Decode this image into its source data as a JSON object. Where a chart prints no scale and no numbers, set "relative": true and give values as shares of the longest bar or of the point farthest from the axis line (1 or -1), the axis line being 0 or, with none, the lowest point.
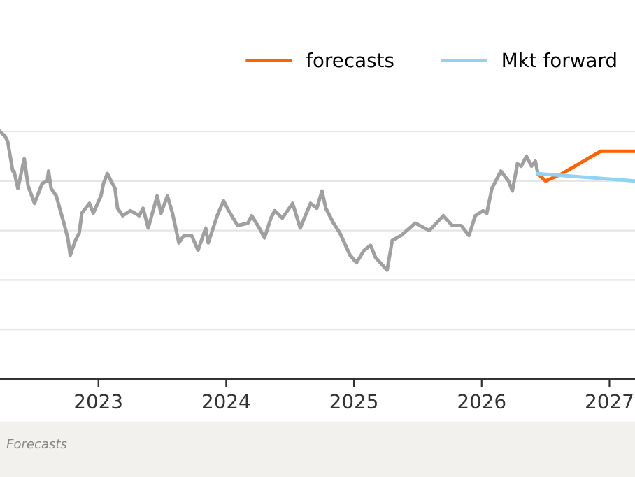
{
  "chart_data": {
    "type": "line",
    "relative": true,
    "grid": "y",
    "legend": "top right",
    "tick_labels": "x",
    "marker": "none",
    "line_style": "solid",
    "xlim": [
      2022.23,
      2027.2
    ],
    "xticks": [
      2023,
      2024,
      2025,
      2026,
      2027
    ],
    "annotations": [
      "Forecasts"
    ],
    "series": [
      {
        "color": "#a0a0a0",
        "x": [
          2022.23,
          2022.27,
          2022.29,
          2022.33,
          2022.34,
          2022.37,
          2022.42,
          2022.45,
          2022.5,
          2022.53,
          2022.56,
          2022.6,
          2022.61,
          2022.63,
          2022.67,
          2022.73,
          2022.76,
          2022.78,
          2022.82,
          2022.85,
          2022.87,
          2022.93,
          2022.96,
          2023.02,
          2023.04,
          2023.07,
          2023.13,
          2023.15,
          2023.19,
          2023.25,
          2023.32,
          2023.35,
          2023.39,
          2023.46,
          2023.49,
          2023.54,
          2023.58,
          2023.63,
          2023.67,
          2023.73,
          2023.78,
          2023.84,
          2023.86,
          2023.93,
          2023.98,
          2024.02,
          2024.09,
          2024.17,
          2024.2,
          2024.26,
          2024.3,
          2024.35,
          2024.38,
          2024.44,
          2024.52,
          2024.58,
          2024.66,
          2024.71,
          2024.75,
          2024.78,
          2024.84,
          2024.89,
          2024.97,
          2025.02,
          2025.08,
          2025.13,
          2025.17,
          2025.26,
          2025.3,
          2025.37,
          2025.48,
          2025.59,
          2025.7,
          2025.77,
          2025.84,
          2025.9,
          2025.95,
          2026.01,
          2026.04,
          2026.08,
          2026.15,
          2026.21,
          2026.24,
          2026.28,
          2026.31,
          2026.35,
          2026.39,
          2026.42,
          2026.44
        ],
        "values": [
          1.0,
          0.98,
          0.96,
          0.84,
          0.84,
          0.77,
          0.89,
          0.78,
          0.71,
          0.75,
          0.79,
          0.8,
          0.84,
          0.77,
          0.74,
          0.63,
          0.57,
          0.5,
          0.56,
          0.59,
          0.67,
          0.71,
          0.67,
          0.74,
          0.79,
          0.83,
          0.77,
          0.69,
          0.66,
          0.68,
          0.66,
          0.69,
          0.61,
          0.74,
          0.67,
          0.74,
          0.67,
          0.55,
          0.58,
          0.58,
          0.52,
          0.61,
          0.55,
          0.66,
          0.72,
          0.68,
          0.62,
          0.63,
          0.66,
          0.61,
          0.57,
          0.65,
          0.68,
          0.65,
          0.71,
          0.61,
          0.71,
          0.69,
          0.76,
          0.69,
          0.63,
          0.59,
          0.5,
          0.47,
          0.52,
          0.54,
          0.49,
          0.44,
          0.56,
          0.58,
          0.63,
          0.6,
          0.66,
          0.62,
          0.62,
          0.58,
          0.66,
          0.68,
          0.67,
          0.77,
          0.84,
          0.8,
          0.76,
          0.87,
          0.86,
          0.9,
          0.86,
          0.88,
          0.83
        ]
      },
      {
        "name": "forecasts",
        "color": "#ff6200",
        "x": [
          2026.44,
          2026.5,
          2026.63,
          2026.93,
          2027.19
        ],
        "values": [
          0.83,
          0.8,
          0.83,
          0.92,
          0.92
        ]
      },
      {
        "name": "Mkt forward",
        "color": "#8fd3f5",
        "x": [
          2026.44,
          2027.2
        ],
        "values": [
          0.83,
          0.8
        ]
      }
    ]
  }
}
